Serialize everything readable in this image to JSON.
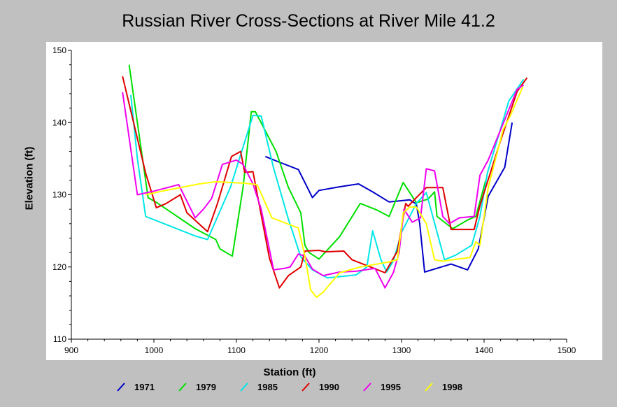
{
  "chart_data": {
    "type": "line",
    "title": "Russian River Cross-Sections at River Mile 41.2",
    "xlabel": "Station (ft)",
    "ylabel": "Elevation (ft)",
    "xlim": [
      900,
      1500
    ],
    "ylim": [
      110,
      150
    ],
    "x_ticks": [
      "900",
      "1000",
      "1100",
      "1200",
      "1300",
      "1400",
      "1500"
    ],
    "y_ticks": [
      "110",
      "120",
      "130",
      "140",
      "150"
    ],
    "grid": false,
    "legend_position": "bottom",
    "series": [
      {
        "name": "1971",
        "color": "#0000c8",
        "points": [
          [
            1135,
            135.3
          ],
          [
            1150,
            134.6
          ],
          [
            1175,
            133.5
          ],
          [
            1192,
            129.6
          ],
          [
            1200,
            130.6
          ],
          [
            1225,
            131.1
          ],
          [
            1248,
            131.5
          ],
          [
            1265,
            130.4
          ],
          [
            1285,
            129.0
          ],
          [
            1310,
            129.3
          ],
          [
            1318,
            128.7
          ],
          [
            1322,
            126.0
          ],
          [
            1328,
            119.3
          ],
          [
            1360,
            120.4
          ],
          [
            1380,
            119.6
          ],
          [
            1393,
            122.5
          ],
          [
            1405,
            129.8
          ],
          [
            1425,
            133.8
          ],
          [
            1434,
            140.0
          ]
        ]
      },
      {
        "name": "1979",
        "color": "#00e000",
        "points": [
          [
            970,
            148.0
          ],
          [
            993,
            129.6
          ],
          [
            1005,
            128.8
          ],
          [
            1050,
            125.3
          ],
          [
            1075,
            123.8
          ],
          [
            1080,
            122.5
          ],
          [
            1095,
            121.5
          ],
          [
            1108,
            131.0
          ],
          [
            1118,
            141.5
          ],
          [
            1123,
            141.5
          ],
          [
            1148,
            136.0
          ],
          [
            1163,
            131.0
          ],
          [
            1178,
            127.5
          ],
          [
            1183,
            123.0
          ],
          [
            1188,
            122.0
          ],
          [
            1200,
            121.1
          ],
          [
            1225,
            124.2
          ],
          [
            1250,
            128.8
          ],
          [
            1270,
            127.9
          ],
          [
            1285,
            127.0
          ],
          [
            1302,
            131.7
          ],
          [
            1318,
            128.9
          ],
          [
            1332,
            129.4
          ],
          [
            1340,
            130.4
          ],
          [
            1343,
            127.0
          ],
          [
            1362,
            125.3
          ],
          [
            1380,
            126.5
          ],
          [
            1390,
            127.0
          ],
          [
            1402,
            132.0
          ]
        ]
      },
      {
        "name": "1985",
        "color": "#00e6e6",
        "points": [
          [
            972,
            143.8
          ],
          [
            980,
            135.0
          ],
          [
            990,
            127.0
          ],
          [
            1050,
            124.3
          ],
          [
            1065,
            123.8
          ],
          [
            1093,
            131.1
          ],
          [
            1120,
            141.0
          ],
          [
            1130,
            140.9
          ],
          [
            1145,
            133.7
          ],
          [
            1163,
            126.6
          ],
          [
            1178,
            121.4
          ],
          [
            1192,
            119.6
          ],
          [
            1210,
            118.5
          ],
          [
            1220,
            118.6
          ],
          [
            1245,
            118.9
          ],
          [
            1258,
            120.0
          ],
          [
            1265,
            125.0
          ],
          [
            1275,
            121.0
          ],
          [
            1282,
            119.3
          ],
          [
            1290,
            120.8
          ],
          [
            1300,
            124.8
          ],
          [
            1318,
            128.8
          ],
          [
            1330,
            130.3
          ],
          [
            1352,
            121.0
          ],
          [
            1365,
            121.6
          ],
          [
            1385,
            123.0
          ],
          [
            1395,
            127.0
          ],
          [
            1404,
            133.0
          ],
          [
            1430,
            143.0
          ],
          [
            1448,
            146.0
          ]
        ]
      },
      {
        "name": "1990",
        "color": "#e00000",
        "points": [
          [
            962,
            146.4
          ],
          [
            990,
            133.0
          ],
          [
            1003,
            128.2
          ],
          [
            1015,
            128.8
          ],
          [
            1032,
            130.0
          ],
          [
            1040,
            127.5
          ],
          [
            1065,
            124.9
          ],
          [
            1077,
            128.8
          ],
          [
            1094,
            135.3
          ],
          [
            1105,
            136.0
          ],
          [
            1110,
            133.1
          ],
          [
            1120,
            133.2
          ],
          [
            1140,
            121.2
          ],
          [
            1152,
            117.1
          ],
          [
            1163,
            118.8
          ],
          [
            1178,
            120.0
          ],
          [
            1183,
            122.2
          ],
          [
            1200,
            122.3
          ],
          [
            1208,
            122.1
          ],
          [
            1230,
            122.2
          ],
          [
            1240,
            121.0
          ],
          [
            1280,
            119.2
          ],
          [
            1295,
            122.2
          ],
          [
            1305,
            128.8
          ],
          [
            1308,
            128.4
          ],
          [
            1318,
            129.6
          ],
          [
            1330,
            131.0
          ],
          [
            1350,
            131.0
          ],
          [
            1360,
            125.2
          ],
          [
            1388,
            125.2
          ],
          [
            1395,
            128.5
          ],
          [
            1420,
            137.5
          ],
          [
            1440,
            144.3
          ],
          [
            1452,
            146.2
          ]
        ]
      },
      {
        "name": "1995",
        "color": "#f000f0",
        "points": [
          [
            962,
            144.2
          ],
          [
            980,
            130.0
          ],
          [
            1000,
            130.5
          ],
          [
            1030,
            131.4
          ],
          [
            1050,
            126.8
          ],
          [
            1060,
            128.0
          ],
          [
            1070,
            129.5
          ],
          [
            1083,
            134.2
          ],
          [
            1100,
            134.8
          ],
          [
            1108,
            134.2
          ],
          [
            1120,
            131.5
          ],
          [
            1130,
            128.0
          ],
          [
            1145,
            119.6
          ],
          [
            1158,
            119.8
          ],
          [
            1165,
            120.0
          ],
          [
            1175,
            121.8
          ],
          [
            1183,
            121.5
          ],
          [
            1192,
            119.7
          ],
          [
            1205,
            118.8
          ],
          [
            1225,
            119.3
          ],
          [
            1245,
            119.4
          ],
          [
            1268,
            119.8
          ],
          [
            1280,
            117.1
          ],
          [
            1290,
            119.2
          ],
          [
            1297,
            122.0
          ],
          [
            1303,
            128.0
          ],
          [
            1313,
            126.2
          ],
          [
            1323,
            126.8
          ],
          [
            1330,
            133.6
          ],
          [
            1340,
            133.3
          ],
          [
            1350,
            127.0
          ],
          [
            1358,
            126.0
          ],
          [
            1370,
            126.8
          ],
          [
            1388,
            127.0
          ],
          [
            1395,
            132.7
          ],
          [
            1405,
            134.8
          ],
          [
            1420,
            139.0
          ],
          [
            1440,
            144.6
          ],
          [
            1448,
            145.2
          ]
        ]
      },
      {
        "name": "1998",
        "color": "#ffff00",
        "points": [
          [
            990,
            130.0
          ],
          [
            1010,
            130.5
          ],
          [
            1055,
            131.5
          ],
          [
            1075,
            131.8
          ],
          [
            1110,
            131.6
          ],
          [
            1125,
            131.4
          ],
          [
            1143,
            126.8
          ],
          [
            1175,
            125.4
          ],
          [
            1183,
            121.5
          ],
          [
            1190,
            116.8
          ],
          [
            1197,
            115.8
          ],
          [
            1205,
            116.5
          ],
          [
            1225,
            119.2
          ],
          [
            1250,
            120.0
          ],
          [
            1285,
            120.7
          ],
          [
            1295,
            121.0
          ],
          [
            1302,
            127.5
          ],
          [
            1310,
            128.3
          ],
          [
            1318,
            128.3
          ],
          [
            1330,
            126.0
          ],
          [
            1340,
            121.0
          ],
          [
            1350,
            120.8
          ],
          [
            1362,
            121.0
          ],
          [
            1383,
            121.3
          ],
          [
            1390,
            123.5
          ],
          [
            1395,
            123.0
          ],
          [
            1405,
            131.0
          ],
          [
            1423,
            139.0
          ],
          [
            1432,
            141.0
          ],
          [
            1447,
            145.0
          ]
        ]
      }
    ]
  }
}
